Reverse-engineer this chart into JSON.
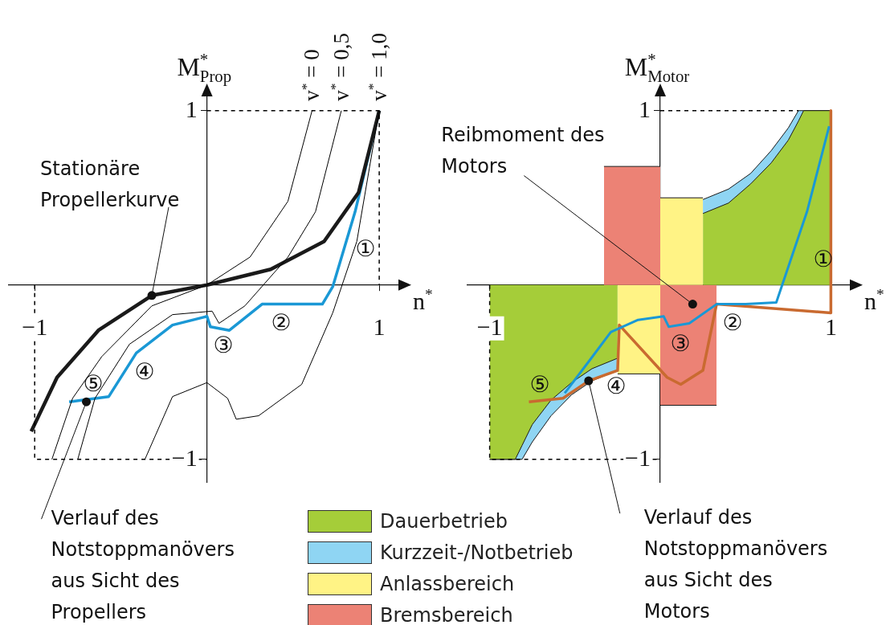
{
  "chart_data": [
    {
      "type": "line",
      "xlabel": "n$^{*}$",
      "ylabel": "M$^{*}$$_{Prop}$",
      "xlim": [
        -1.15,
        1.13
      ],
      "ylim": [
        -1.13,
        1.1
      ],
      "xticks": [
        {
          "value": -1,
          "label": "−1"
        },
        1
      ],
      "yticks": [
        {
          "value": -1,
          "label": "−1"
        },
        1
      ],
      "marker": "none",
      "legend": false,
      "series": [
        {
          "color": "#000000",
          "x": [
            0.61,
            0.47,
            0.25,
            0,
            -0.32,
            -0.61,
            -0.78,
            -0.9
          ],
          "values": [
            1,
            0.48,
            0.16,
            0,
            -0.12,
            -0.41,
            -0.65,
            -1
          ]
        },
        {
          "color": "#000000",
          "x": [
            0.78,
            0.63,
            0.47,
            0.22,
            0.07,
            0.03,
            -0.2,
            -0.45,
            -0.65,
            -0.75
          ],
          "values": [
            1,
            0.42,
            0.16,
            -0.12,
            -0.22,
            -0.15,
            -0.17,
            -0.34,
            -0.65,
            -1
          ]
        },
        {
          "color": "#000000",
          "x": [
            1,
            0.87,
            0.73,
            0.55,
            0.3,
            0.17,
            0.12,
            0,
            -0.2,
            -0.36
          ],
          "values": [
            1,
            0.25,
            -0.16,
            -0.57,
            -0.75,
            -0.77,
            -0.65,
            -0.56,
            -0.64,
            -1
          ]
        },
        {
          "color": "#000000",
          "line_style": "dashed",
          "x": [
            0,
            1,
            1
          ],
          "values": [
            1,
            1,
            0
          ]
        },
        {
          "color": "#000000",
          "line_style": "dashed",
          "x": [
            -1,
            -1,
            0
          ],
          "values": [
            0,
            -1,
            -1
          ]
        },
        {
          "color": "#1a1a1a",
          "x": [
            -1.02,
            -0.87,
            -0.63,
            -0.32,
            0,
            0.37,
            0.68,
            0.88,
            1
          ],
          "values": [
            -0.84,
            -0.53,
            -0.26,
            -0.06,
            0,
            0.09,
            0.25,
            0.53,
            1
          ]
        },
        {
          "color": "#1a98d5",
          "x": [
            1,
            0.86,
            0.73,
            0.67,
            0.32,
            0.13,
            0.02,
            0,
            -0.2,
            -0.41,
            -0.57,
            -0.8
          ],
          "values": [
            1,
            0.42,
            -0.01,
            -0.11,
            -0.11,
            -0.26,
            -0.24,
            -0.18,
            -0.23,
            -0.39,
            -0.64,
            -0.67
          ]
        }
      ],
      "annotations": [
        {
          "text": "v$^{*}$ = 0",
          "x": 0.61,
          "y": 1
        },
        {
          "text": "v$^{*}$ = 0,5",
          "x": 0.78,
          "y": 1
        },
        {
          "text": "v$^{*}$ = 1,0",
          "x": 1,
          "y": 1
        },
        {
          "text": "Stationäre\nPropellerkurve",
          "x": -0.32,
          "y": -0.06
        },
        "①",
        "②",
        "③",
        "④",
        "⑤",
        {
          "text": "Verlauf des\nNotstoppmanövers\naus Sicht des\nPropellers",
          "x": -0.7,
          "y": -0.67
        }
      ]
    },
    {
      "type": "line",
      "xlabel": "n$^{*}$",
      "ylabel": "M$^{*}$$_{Motor}$",
      "xlim": [
        -1.13,
        1.13
      ],
      "ylim": [
        -1.13,
        1.1
      ],
      "xticks": [
        {
          "value": -1,
          "label": "−1"
        },
        1
      ],
      "yticks": [
        {
          "value": -1,
          "label": "−1"
        },
        1
      ],
      "marker": "none",
      "legend": "bottom",
      "series": [
        {
          "color": "#1a98d5",
          "x": [
            0.99,
            0.86,
            0.68,
            0.5,
            0.33,
            0.17,
            0.05,
            0.02,
            -0.13,
            -0.29,
            -0.42,
            -0.56
          ],
          "values": [
            0.91,
            0.42,
            -0.1,
            -0.11,
            -0.11,
            -0.22,
            -0.24,
            -0.18,
            -0.2,
            -0.27,
            -0.44,
            -0.62
          ]
        },
        {
          "color": "#c96a30",
          "x": [
            1,
            1,
            0.33,
            0.25,
            0.12,
            0.04,
            -0.24,
            -0.25,
            -0.42,
            -0.57,
            -0.77
          ],
          "values": [
            1,
            -0.16,
            -0.11,
            -0.49,
            -0.57,
            -0.53,
            -0.23,
            -0.49,
            -0.55,
            -0.65,
            -0.67
          ]
        },
        {
          "color": "#000000",
          "line_style": "dashed",
          "x": [
            0,
            0.81
          ],
          "values": [
            1,
            1
          ]
        },
        {
          "color": "#000000",
          "line_style": "dashed",
          "x": [
            -1,
            -1,
            0
          ],
          "values": [
            0,
            -1,
            -1
          ]
        },
        {
          "type": "area",
          "name": "Dauerbetrieb",
          "color": "#a5cd39",
          "x": [
            0.25,
            0.4,
            0.53,
            0.65,
            0.75,
            0.81,
            0.84,
            1
          ],
          "values": [
            0.41,
            0.47,
            0.58,
            0.7,
            0.83,
            0.94,
            1,
            1
          ]
        },
        {
          "type": "area",
          "name": "Kurzzeit-/Notbetrieb",
          "color": "#8fd5f3",
          "x": [
            0.25,
            0.4,
            0.53,
            0.65,
            0.75,
            0.81,
            0.84,
            1
          ],
          "values": [
            0.49,
            0.55,
            0.64,
            0.77,
            0.9,
            1,
            1,
            1
          ]
        },
        {
          "type": "area",
          "name": "Anlassbereich",
          "color": "#fff385",
          "x": [
            0,
            0.25
          ],
          "values": [
            0.5,
            0.5
          ]
        },
        {
          "type": "area",
          "name": "Bremsbereich",
          "color": "#ec8275",
          "x": [
            -0.33,
            0
          ],
          "values": [
            0.68,
            0.68
          ]
        },
        {
          "type": "area",
          "color": "#a5cd39",
          "x": [
            -1,
            -0.85,
            -0.81,
            -0.75,
            -0.64,
            -0.52,
            -0.4,
            -0.25
          ],
          "values": [
            -1,
            -1,
            -0.92,
            -0.8,
            -0.66,
            -0.56,
            -0.48,
            -0.42
          ]
        },
        {
          "type": "area",
          "color": "#8fd5f3",
          "x": [
            -1,
            -0.85,
            -0.81,
            -0.75,
            -0.64,
            -0.52,
            -0.4,
            -0.25
          ],
          "values": [
            -1,
            -1,
            -1,
            -0.9,
            -0.75,
            -0.63,
            -0.55,
            -0.49
          ]
        },
        {
          "type": "area",
          "color": "#fff385",
          "x": [
            -0.25,
            0
          ],
          "values": [
            -0.51,
            -0.51
          ]
        },
        {
          "type": "area",
          "color": "#ec8275",
          "x": [
            0,
            0.33
          ],
          "values": [
            -0.69,
            -0.69
          ]
        }
      ],
      "annotations": [
        {
          "text": "Reibmoment des\nMotors",
          "x": 0.19,
          "y": -0.11
        },
        "①",
        "②",
        "③",
        "④",
        "⑤",
        {
          "text": "Verlauf des\nNotstoppmanövers\naus Sicht des\nMotors",
          "x": -0.42,
          "y": -0.55
        }
      ]
    }
  ]
}
